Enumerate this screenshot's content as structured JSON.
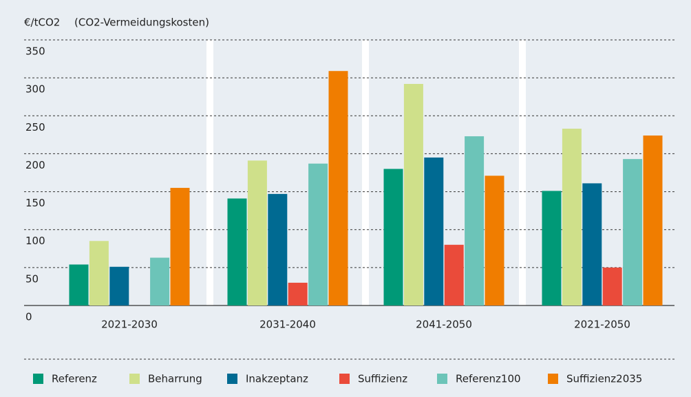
{
  "chart_data": {
    "type": "bar",
    "y_label": "€/tCO2",
    "subtitle": "(CO2-Vermeidungskosten)",
    "categories": [
      "2021-2030",
      "2031-2040",
      "2041-2050",
      "2021-2050"
    ],
    "series": [
      {
        "name": "Referenz",
        "color": "#009977",
        "values": [
          54,
          141,
          180,
          151
        ]
      },
      {
        "name": "Beharrung",
        "color": "#cfe08a",
        "values": [
          85,
          191,
          292,
          233
        ]
      },
      {
        "name": "Inakzeptanz",
        "color": "#006a92",
        "values": [
          51,
          147,
          195,
          161
        ]
      },
      {
        "name": "Suffizienz",
        "color": "#ea4b3a",
        "values": [
          null,
          30,
          80,
          50
        ]
      },
      {
        "name": "Referenz100",
        "color": "#6cc4b8",
        "values": [
          63,
          187,
          223,
          193
        ]
      },
      {
        "name": "Suffizienz2035",
        "color": "#f07d00",
        "values": [
          155,
          309,
          171,
          224
        ]
      }
    ],
    "ylim": [
      0,
      350
    ],
    "yticks": [
      0,
      50,
      100,
      150,
      200,
      250,
      300,
      350
    ],
    "grid": true,
    "legend": "bottom"
  }
}
